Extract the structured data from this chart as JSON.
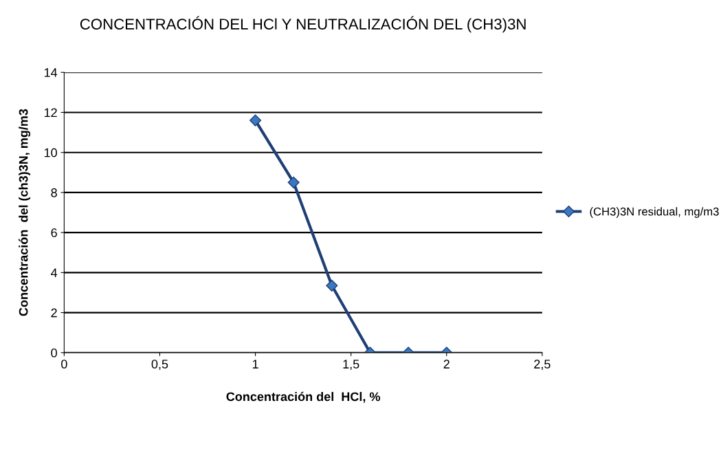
{
  "chart_data": {
    "type": "line",
    "title": "CONCENTRACIÓN DEL HCl Y NEUTRALIZACIÓN DEL (CH3)3N",
    "xlabel": "Concentración del  HCl, %",
    "ylabel": "Concentración  del (ch3)3N, mg/m3",
    "x": [
      1,
      1.2,
      1.4,
      1.6,
      1.8,
      2
    ],
    "series": [
      {
        "name": "(CH3)3N residual, mg/m3",
        "color": "#1f3f77",
        "values": [
          11.6,
          8.5,
          3.35,
          0,
          0,
          0
        ]
      }
    ],
    "xlim": [
      0,
      2.5
    ],
    "xticks": [
      0,
      {
        "value": 0.5,
        "label": "0,5"
      },
      1,
      {
        "value": 1.5,
        "label": "1,5"
      },
      2,
      {
        "value": 2.5,
        "label": "2,5"
      }
    ],
    "ylim": [
      0,
      14
    ],
    "yticks": [
      0,
      2,
      4,
      6,
      8,
      10,
      12,
      14
    ],
    "grid": "y",
    "legend": "right",
    "marker": "diamond",
    "line_style": "solid"
  }
}
